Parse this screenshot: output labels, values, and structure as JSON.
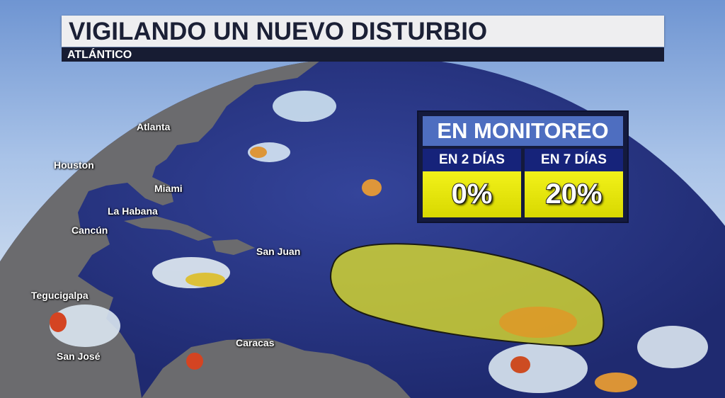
{
  "header": {
    "title": "VIGILANDO UN NUEVO DISTURBIO",
    "subtitle": "ATLÁNTICO"
  },
  "cities": [
    "Atlanta",
    "Houston",
    "Miami",
    "La Habana",
    "Cancún",
    "San Juan",
    "Tegucigalpa",
    "Caracas",
    "San José"
  ],
  "outlook": {
    "title": "EN MONITOREO",
    "periods": [
      {
        "label": "EN 2 DÍAS",
        "value": "0%"
      },
      {
        "label": "EN 7 DÍAS",
        "value": "20%"
      }
    ]
  },
  "colors": {
    "ocean": "#2b3a8c",
    "land": "#6b6b6e",
    "outlook_area": "#f0f020",
    "panel_head": "#4e6ec0",
    "panel_subhead": "#16237a",
    "panel_value": "#e8e810",
    "title_bar": "#eeeef0",
    "subtitle_bar": "#171c33"
  }
}
